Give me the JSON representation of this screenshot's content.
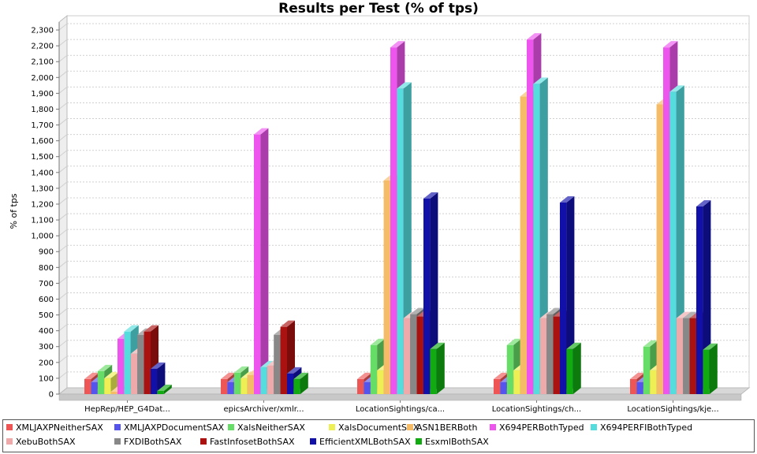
{
  "chart_data": {
    "type": "bar",
    "title": "Results per Test (% of tps)",
    "xlabel": "",
    "ylabel": "% of tps",
    "ylim": [
      0,
      2350
    ],
    "yticks": [
      0,
      100,
      200,
      300,
      400,
      500,
      600,
      700,
      800,
      900,
      1000,
      1100,
      1200,
      1300,
      1400,
      1500,
      1600,
      1700,
      1800,
      1900,
      2000,
      2100,
      2200,
      2300
    ],
    "ytick_labels": [
      "0",
      "100",
      "200",
      "300",
      "400",
      "500",
      "600",
      "700",
      "800",
      "900",
      "1,000",
      "1,100",
      "1,200",
      "1,300",
      "1,400",
      "1,500",
      "1,600",
      "1,700",
      "1,800",
      "1,900",
      "2,000",
      "2,100",
      "2,200",
      "2,300"
    ],
    "categories": [
      "HepRep/HEP_G4Dat...",
      "epicsArchiver/xmlr...",
      "LocationSightings/ca...",
      "LocationSightings/ch...",
      "LocationSightings/kje..."
    ],
    "grid": true,
    "legend_position": "bottom",
    "series": [
      {
        "name": "XMLJAXPNeitherSAX",
        "color": "#ee5555",
        "values": [
          95,
          95,
          95,
          95,
          95
        ]
      },
      {
        "name": "XMLJAXPDocumentSAX",
        "color": "#5555ee",
        "values": [
          75,
          75,
          75,
          75,
          75
        ]
      },
      {
        "name": "XalsNeitherSAX",
        "color": "#66dd66",
        "values": [
          145,
          135,
          310,
          310,
          300
        ]
      },
      {
        "name": "XalsDocumentSAX",
        "color": "#eeee55",
        "values": [
          100,
          100,
          150,
          150,
          150
        ]
      },
      {
        "name": "ASN1BERBoth",
        "color": "#f5bb66",
        "values": [
          15,
          120,
          1350,
          1880,
          1830
        ]
      },
      {
        "name": "X694PERBothTyped",
        "color": "#ee55ee",
        "values": [
          350,
          1640,
          2190,
          2240,
          2190
        ]
      },
      {
        "name": "X694PERFIBothTyped",
        "color": "#55dddd",
        "values": [
          395,
          170,
          1930,
          1960,
          1910
        ]
      },
      {
        "name": "XebuBothSAX",
        "color": "#eeaaaa",
        "values": [
          255,
          180,
          480,
          480,
          480
        ]
      },
      {
        "name": "FXDIBothSAX",
        "color": "#888888",
        "values": [
          375,
          375,
          505,
          505,
          480
        ]
      },
      {
        "name": "FastInfosetBothSAX",
        "color": "#aa1111",
        "values": [
          395,
          425,
          490,
          490,
          480
        ]
      },
      {
        "name": "EfficientXMLBothSAX",
        "color": "#1111aa",
        "values": [
          160,
          130,
          1235,
          1210,
          1185
        ]
      },
      {
        "name": "EsxmlBothSAX",
        "color": "#11aa11",
        "values": [
          20,
          95,
          285,
          285,
          280
        ]
      }
    ]
  }
}
